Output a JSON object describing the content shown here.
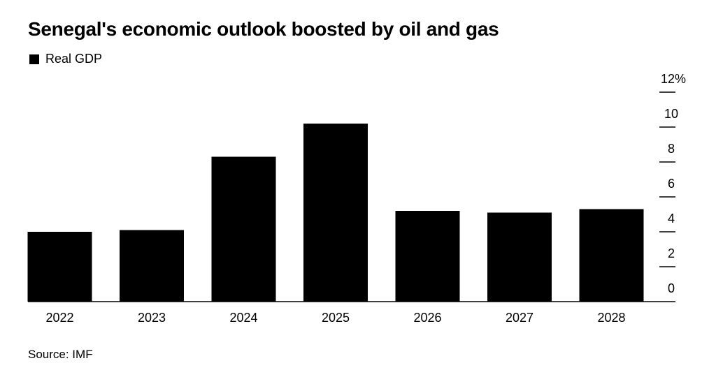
{
  "title": "Senegal's economic outlook boosted by oil and gas",
  "source": "Source: IMF",
  "colors": {
    "bar": "#000000",
    "background": "#ffffff",
    "text": "#000000"
  },
  "chart_data": {
    "type": "bar",
    "title": "Senegal's economic outlook boosted by oil and gas",
    "xlabel": "",
    "ylabel": "",
    "legend": [
      {
        "name": "Real GDP",
        "color": "#000000"
      }
    ],
    "legend_position": "top-left",
    "y_axis_position": "right",
    "ylim": [
      0,
      12
    ],
    "y_ticks": [
      0,
      2,
      4,
      6,
      8,
      10,
      12
    ],
    "y_tick_labels": [
      "0",
      "2",
      "4",
      "6",
      "8",
      "10",
      "12%"
    ],
    "grid": false,
    "categories": [
      "2022",
      "2023",
      "2024",
      "2025",
      "2026",
      "2027",
      "2028"
    ],
    "series": [
      {
        "name": "Real GDP",
        "color": "#000000",
        "values": [
          4.0,
          4.1,
          8.3,
          10.2,
          5.2,
          5.1,
          5.3
        ]
      }
    ]
  }
}
